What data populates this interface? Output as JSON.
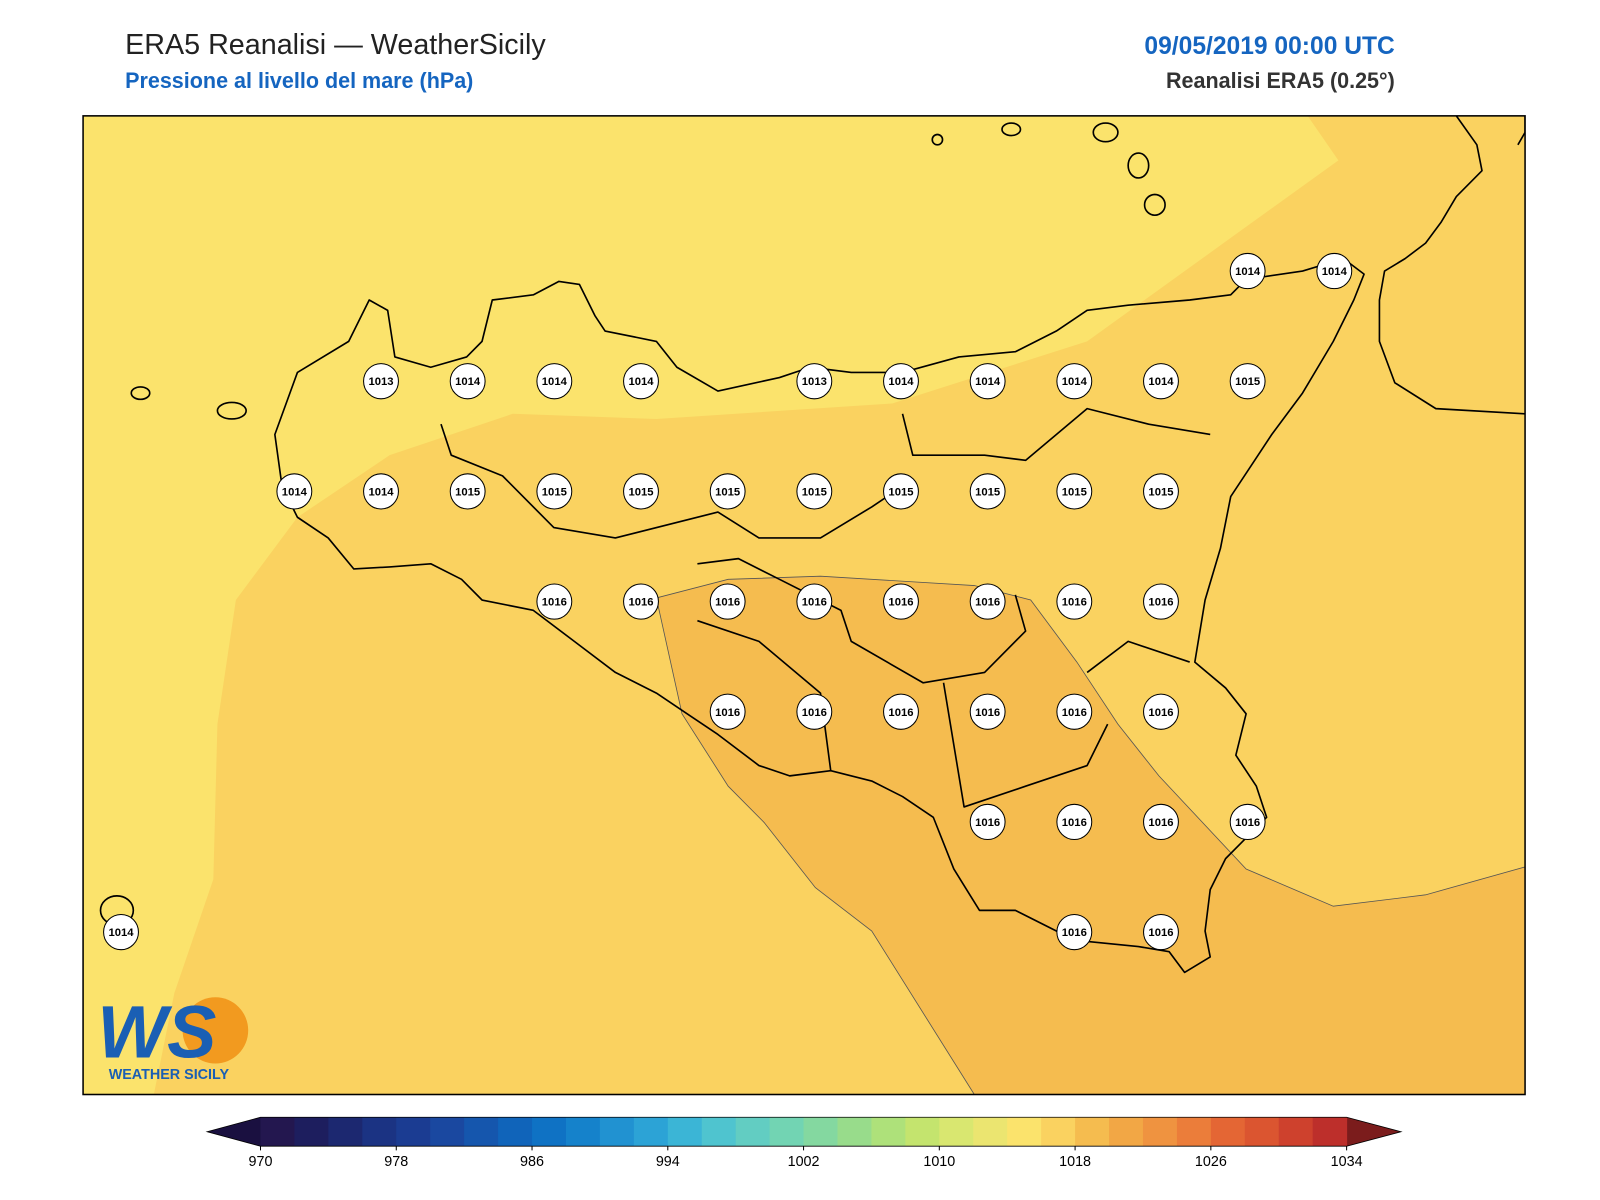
{
  "header": {
    "title": "ERA5 Reanalisi — WeatherSicily",
    "subtitle": "Pressione al livello del mare (hPa)",
    "datetime": "09/05/2019 00:00 UTC",
    "source": "Reanalisi ERA5 (0.25°)"
  },
  "stations": {
    "rows": [
      [
        null,
        null,
        null,
        null,
        null,
        null,
        null,
        null,
        null,
        null,
        null,
        null,
        null,
        1014,
        1014
      ],
      [
        null,
        null,
        null,
        1013,
        1014,
        1014,
        1014,
        null,
        1013,
        1014,
        1014,
        1014,
        1014,
        1015,
        null
      ],
      [
        null,
        null,
        1014,
        1014,
        1015,
        1015,
        1015,
        1015,
        1015,
        1015,
        1015,
        1015,
        1015,
        null,
        null
      ],
      [
        null,
        null,
        null,
        null,
        null,
        1016,
        1016,
        1016,
        1016,
        1016,
        1016,
        1016,
        1016,
        null,
        null
      ],
      [
        null,
        null,
        null,
        null,
        null,
        null,
        null,
        1016,
        1016,
        1016,
        1016,
        1016,
        1016,
        null,
        null
      ],
      [
        null,
        null,
        null,
        null,
        null,
        null,
        null,
        null,
        null,
        null,
        1016,
        1016,
        1016,
        1016,
        null
      ],
      [
        1014,
        null,
        null,
        null,
        null,
        null,
        null,
        null,
        null,
        null,
        null,
        1016,
        1016,
        null,
        null
      ]
    ]
  },
  "colorbar": {
    "lim": [
      970,
      1034
    ],
    "ticks": [
      970,
      978,
      986,
      994,
      1002,
      1010,
      1018,
      1026,
      1034
    ],
    "colors": [
      "#23174f",
      "#1d1e5e",
      "#1c2870",
      "#1b3383",
      "#1b3c92",
      "#1a48a0",
      "#1556ad",
      "#1064ba",
      "#0f72c4",
      "#1582cb",
      "#2192d1",
      "#2ca3d6",
      "#3bb5d6",
      "#4fc4cf",
      "#62cdc2",
      "#72d4b3",
      "#84d8a0",
      "#98dc8b",
      "#aee17a",
      "#c4e46e",
      "#d9e770",
      "#ebe570",
      "#fbe36c",
      "#fad260",
      "#f5bc4f",
      "#f2a745",
      "#ef9340",
      "#eb7d3a",
      "#e46634",
      "#db5530",
      "#ce412d",
      "#bd2f2b"
    ],
    "under_color": "#1a1040",
    "over_color": "#7b1c1c"
  },
  "logo": {
    "mark": "WS",
    "caption": "WEATHER SICILY"
  }
}
